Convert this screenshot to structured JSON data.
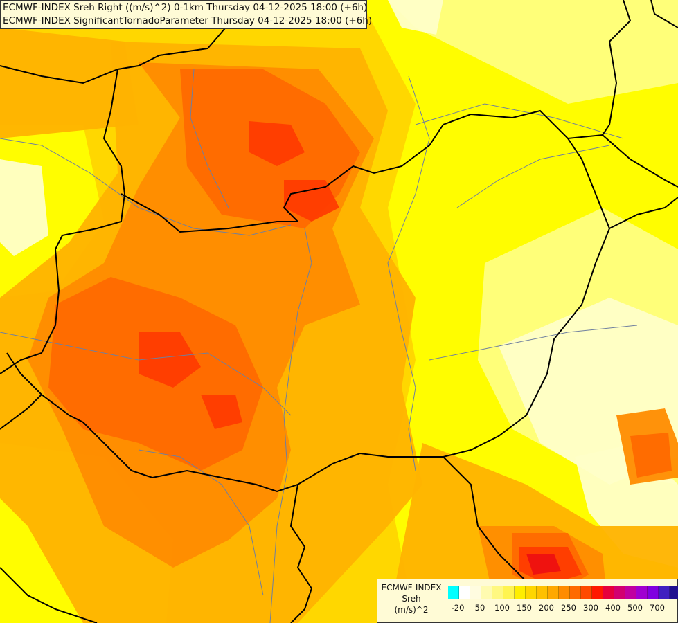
{
  "header": {
    "line1": "ECMWF-INDEX Sreh Right ((m/s)^2) 0-1km Thursday 04-12-2025 18:00 (+6h)",
    "line2": "ECMWF-INDEX SignificantTornadoParameter Thursday 04-12-2025 18:00 (+6h)"
  },
  "legend": {
    "source": "ECMWF-INDEX",
    "variable": "Sreh",
    "unit": "(m/s)^2",
    "colors": [
      "#00ffff",
      "#ffffff",
      "#fffce0",
      "#fffbb0",
      "#fff880",
      "#fff450",
      "#ffee00",
      "#ffd600",
      "#ffc000",
      "#ffa800",
      "#ff8c00",
      "#ff6a00",
      "#ff4a00",
      "#ff1800",
      "#e6003c",
      "#d20070",
      "#c000a0",
      "#a000d0",
      "#8000e0",
      "#4020c0",
      "#201090",
      "#000070"
    ],
    "ticks": [
      "-20",
      "50",
      "100",
      "150",
      "200",
      "250",
      "300",
      "400",
      "500",
      "700"
    ]
  },
  "map": {
    "palette": {
      "light": "#ffffc8",
      "pale": "#ffff80",
      "yellow": "#ffff00",
      "gold": "#ffd700",
      "lorange": "#ffb300",
      "orange": "#ff8c00",
      "dorange": "#ff6a00",
      "red": "#ff3c00",
      "dred": "#ee1010"
    },
    "border_color": "#000000",
    "river_color": "#6f7f9f"
  }
}
